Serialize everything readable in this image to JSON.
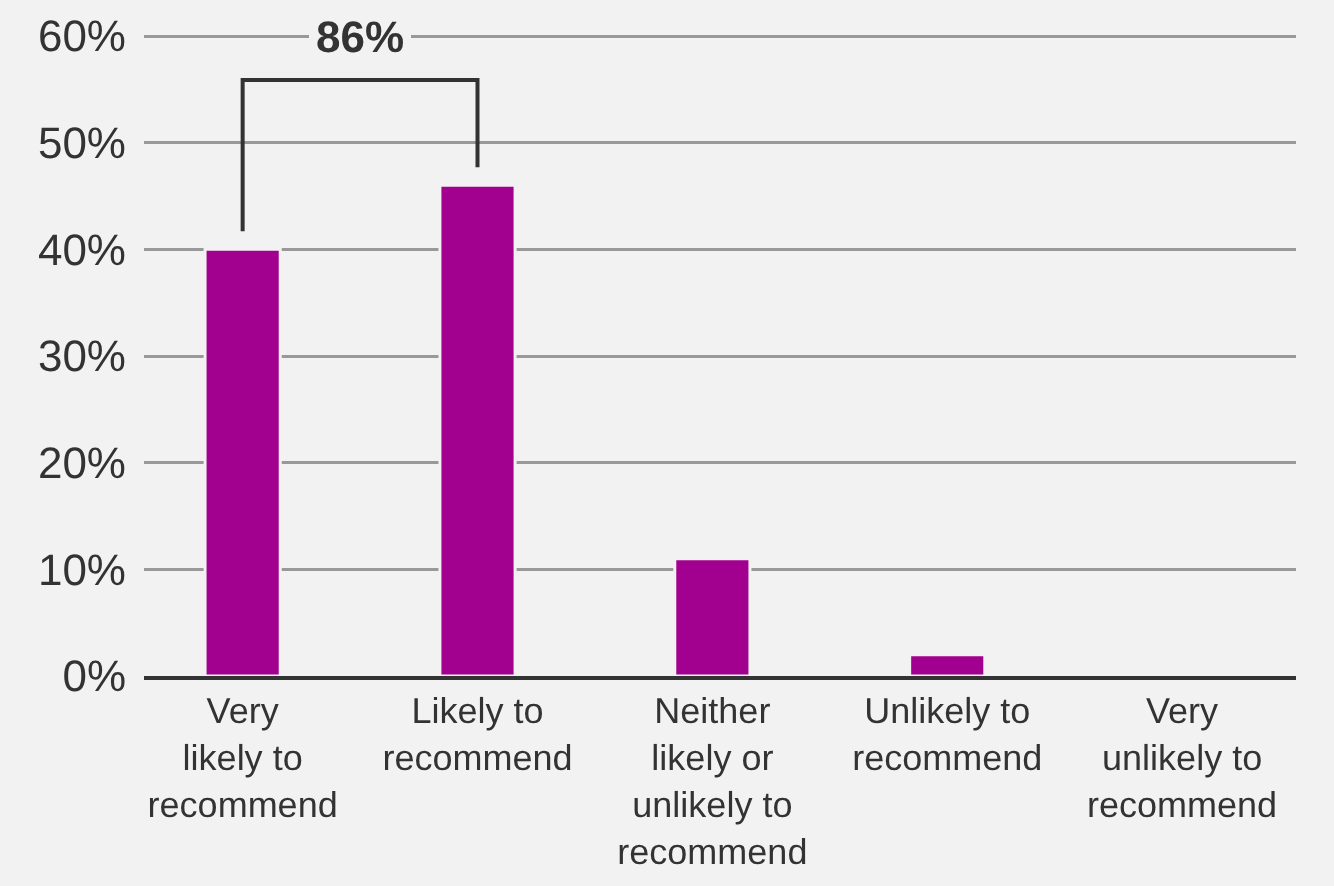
{
  "chart_data": {
    "type": "bar",
    "categories": [
      "Very\nlikely to\nrecommend",
      "Likely to\nrecommend",
      "Neither\nlikely or\nunlikely to\nrecommend",
      "Unlikely to\nrecommend",
      "Very\nunlikely to\nrecommend"
    ],
    "values": [
      40,
      46,
      11,
      2,
      0
    ],
    "color": "#a2008e",
    "ylim": [
      0,
      60
    ],
    "yticks": [
      {
        "value": 0,
        "label": "0%"
      },
      {
        "value": 10,
        "label": "10%"
      },
      {
        "value": 20,
        "label": "20%"
      },
      {
        "value": 30,
        "label": "30%"
      },
      {
        "value": 40,
        "label": "40%"
      },
      {
        "value": 50,
        "label": "50%"
      },
      {
        "value": 60,
        "label": "60%"
      }
    ],
    "grid": "y",
    "annotations": [
      "86%"
    ]
  }
}
